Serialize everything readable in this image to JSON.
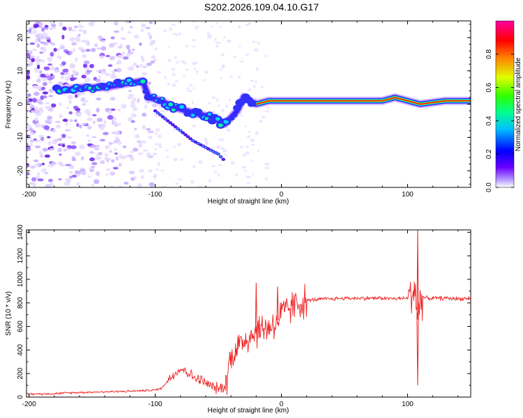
{
  "figure_title": "S202.2026.109.04.10.G17",
  "chart_data": [
    {
      "type": "heatmap",
      "title": "S202.2026.109.04.10.G17",
      "xlabel": "Height of straight line (km)",
      "ylabel": "Frequency (Hz)",
      "xlim": [
        -202,
        150
      ],
      "ylim": [
        -25,
        25
      ],
      "xticks": [
        -200,
        -100,
        0,
        100
      ],
      "yticks": [
        -20,
        -10,
        0,
        10,
        20
      ],
      "colorbar": {
        "label": "Normalized spectral amplitude",
        "range": [
          0,
          1
        ],
        "ticks": [
          0.0,
          0.2,
          0.4,
          0.6,
          0.8
        ],
        "tick_labels": [
          "0.0",
          "0.2",
          "0.4",
          "0.6",
          "0.8"
        ],
        "colormap": [
          "#ffffff",
          "#b090ff",
          "#6a00ff",
          "#0000ff",
          "#00c0ff",
          "#00ff80",
          "#40ff00",
          "#e0ff00",
          "#ff8000",
          "#ff0000",
          "#ff00a0"
        ]
      },
      "ridge": {
        "x": [
          -175,
          -160,
          -140,
          -125,
          -110,
          -105,
          -95,
          -85,
          -75,
          -65,
          -55,
          -45,
          -40,
          -35,
          -30,
          -25,
          -20,
          -10,
          0,
          20,
          50,
          80,
          90,
          100,
          110,
          130,
          150
        ],
        "y": [
          4,
          5,
          5,
          6,
          7,
          2,
          1,
          -1,
          -2,
          -3,
          -4,
          -6,
          -4,
          -2,
          2,
          1,
          0,
          1,
          1,
          1,
          1,
          1,
          2,
          1,
          0,
          1,
          1
        ]
      },
      "branch": {
        "x": [
          -100,
          -90,
          -80,
          -70,
          -60,
          -50,
          -45
        ],
        "y": [
          -2,
          -5,
          -8,
          -11,
          -13,
          -15,
          -17
        ]
      },
      "scatter_region": {
        "x": [
          -202,
          -100
        ],
        "y": [
          -25,
          25
        ]
      }
    },
    {
      "type": "line",
      "xlabel": "Height of straight line (km)",
      "ylabel": "SNR (10 * v/v)",
      "xlim": [
        -202,
        150
      ],
      "ylim": [
        0,
        1420
      ],
      "xticks": [
        -200,
        -100,
        0,
        100
      ],
      "yticks": [
        0,
        200,
        400,
        600,
        800,
        1000,
        1200,
        1400
      ],
      "series": [
        {
          "name": "SNR",
          "color": "#ee2222",
          "x": [
            -202,
            -180,
            -160,
            -140,
            -120,
            -100,
            -95,
            -90,
            -85,
            -80,
            -75,
            -70,
            -65,
            -60,
            -55,
            -50,
            -45,
            -42,
            -40,
            -35,
            -30,
            -25,
            -20,
            -15,
            -10,
            -5,
            0,
            5,
            10,
            20,
            30,
            40,
            50,
            60,
            70,
            80,
            90,
            100,
            104,
            106,
            108,
            110,
            115,
            120,
            130,
            140,
            150
          ],
          "y": [
            25,
            30,
            40,
            45,
            50,
            60,
            75,
            140,
            200,
            240,
            220,
            170,
            150,
            120,
            90,
            70,
            90,
            230,
            350,
            420,
            480,
            520,
            560,
            580,
            600,
            620,
            700,
            740,
            780,
            820,
            830,
            835,
            840,
            840,
            840,
            840,
            835,
            840,
            880,
            950,
            650,
            860,
            840,
            840,
            840,
            835,
            840
          ]
        }
      ],
      "annotations": [
        {
          "x": -20,
          "y": 970
        },
        {
          "x": -3,
          "y": 940
        },
        {
          "x": 108,
          "y": 1420
        },
        {
          "x": 108,
          "y": 100
        }
      ]
    }
  ]
}
